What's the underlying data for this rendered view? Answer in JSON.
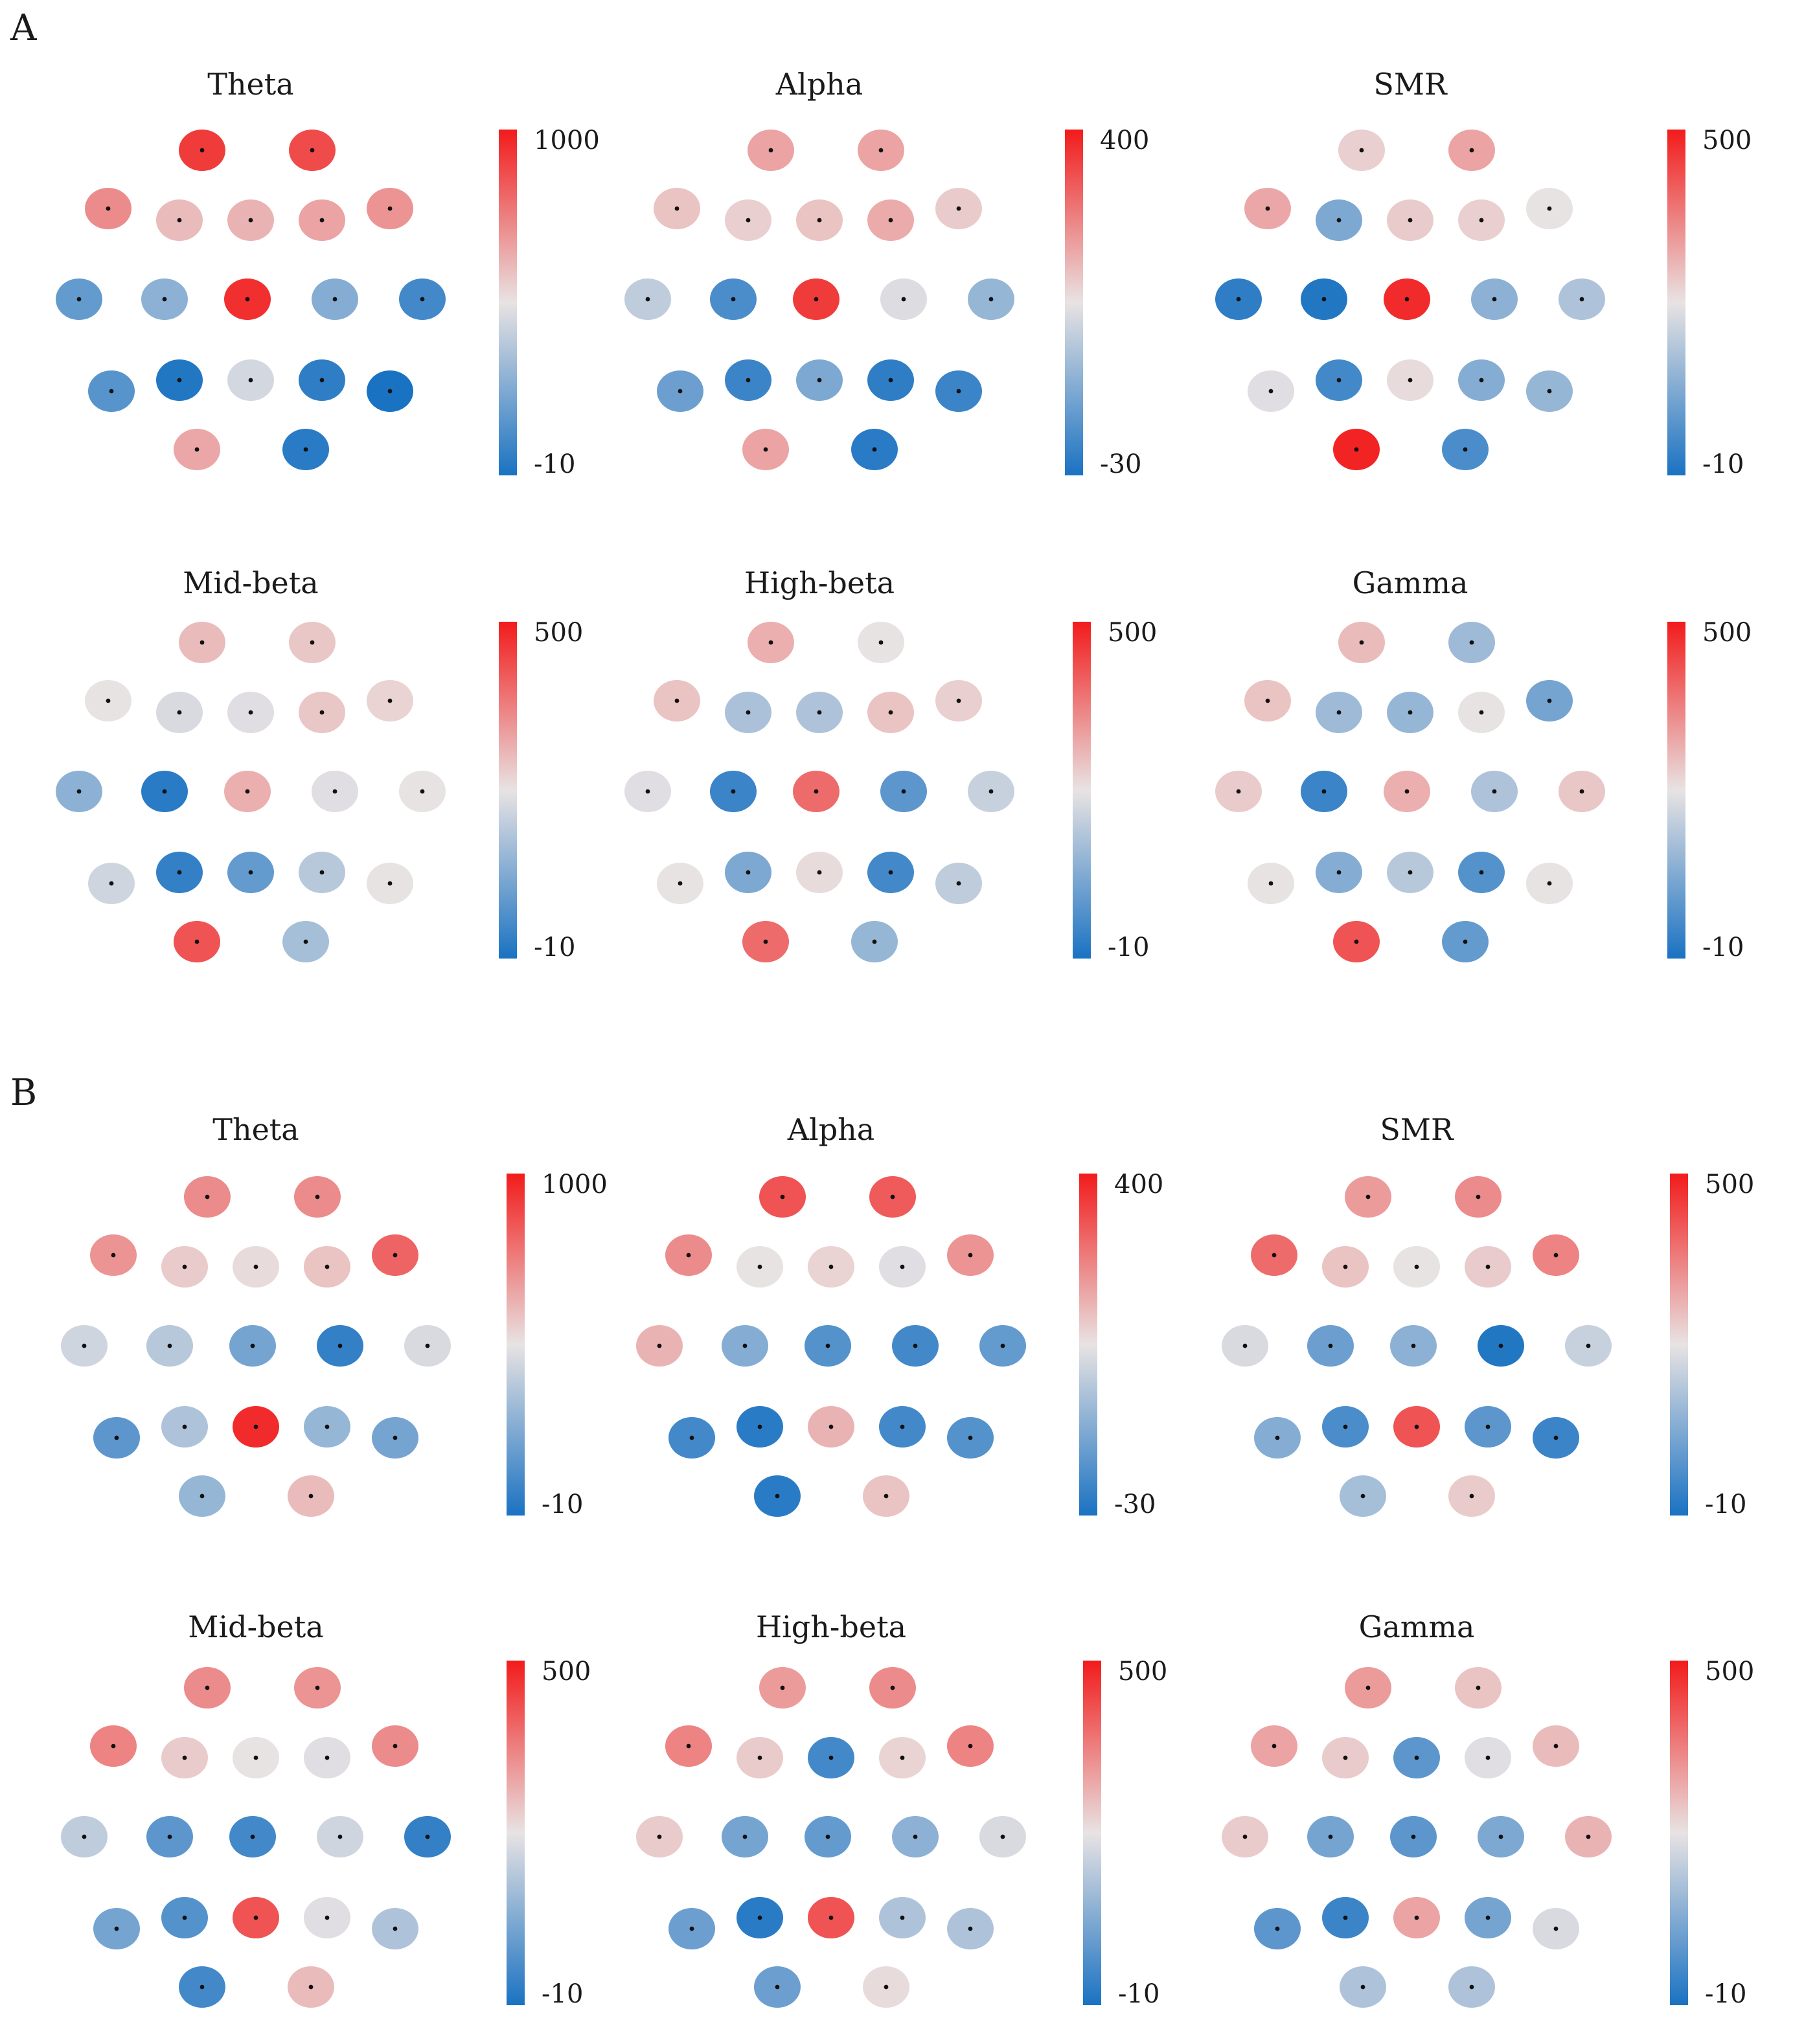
{
  "colors": {
    "high": "#f21b1b",
    "mid": "#e8e3e3",
    "low": "#1a72c2",
    "dot": "#111111"
  },
  "panels": [
    {
      "label": "A",
      "chart_data": [
        {
          "type": "heatmap",
          "title": "Theta",
          "colorbar": {
            "max_label": "1000",
            "min_label": "-10"
          },
          "values": [
            0.92,
            0.88,
            0.72,
            0.6,
            0.62,
            0.66,
            0.7,
            0.18,
            0.28,
            0.95,
            0.26,
            0.1,
            0.15,
            0.02,
            0.45,
            0.05,
            0.0,
            0.65,
            0.04
          ]
        },
        {
          "type": "heatmap",
          "title": "Alpha",
          "colorbar": {
            "max_label": "400",
            "min_label": "-30"
          },
          "values": [
            0.66,
            0.66,
            0.58,
            0.55,
            0.58,
            0.64,
            0.56,
            0.4,
            0.12,
            0.92,
            0.47,
            0.3,
            0.2,
            0.08,
            0.24,
            0.05,
            0.08,
            0.66,
            0.04
          ]
        },
        {
          "type": "heatmap",
          "title": "SMR",
          "colorbar": {
            "max_label": "500",
            "min_label": "-10"
          },
          "values": [
            0.55,
            0.66,
            0.65,
            0.24,
            0.56,
            0.55,
            0.5,
            0.05,
            0.02,
            0.96,
            0.28,
            0.36,
            0.48,
            0.1,
            0.52,
            0.26,
            0.3,
            0.98,
            0.12
          ]
        },
        {
          "type": "heatmap",
          "title": "Mid-beta",
          "colorbar": {
            "max_label": "500",
            "min_label": "-10"
          },
          "values": [
            0.6,
            0.57,
            0.5,
            0.46,
            0.48,
            0.57,
            0.54,
            0.28,
            0.04,
            0.63,
            0.48,
            0.5,
            0.44,
            0.06,
            0.18,
            0.38,
            0.5,
            0.86,
            0.34
          ]
        },
        {
          "type": "heatmap",
          "title": "High-beta",
          "colorbar": {
            "max_label": "500",
            "min_label": "-10"
          },
          "values": [
            0.63,
            0.5,
            0.58,
            0.35,
            0.36,
            0.58,
            0.55,
            0.48,
            0.08,
            0.8,
            0.16,
            0.42,
            0.5,
            0.24,
            0.52,
            0.1,
            0.4,
            0.8,
            0.3
          ]
        },
        {
          "type": "heatmap",
          "title": "Gamma",
          "colorbar": {
            "max_label": "500",
            "min_label": "-10"
          },
          "values": [
            0.6,
            0.32,
            0.58,
            0.32,
            0.3,
            0.5,
            0.22,
            0.56,
            0.08,
            0.63,
            0.36,
            0.57,
            0.5,
            0.26,
            0.38,
            0.14,
            0.5,
            0.86,
            0.18
          ]
        }
      ]
    },
    {
      "label": "B",
      "chart_data": [
        {
          "type": "heatmap",
          "title": "Theta",
          "colorbar": {
            "max_label": "1000",
            "min_label": "-10"
          },
          "values": [
            0.72,
            0.72,
            0.7,
            0.56,
            0.52,
            0.58,
            0.82,
            0.44,
            0.38,
            0.22,
            0.06,
            0.46,
            0.16,
            0.36,
            0.96,
            0.3,
            0.22,
            0.3,
            0.6
          ]
        },
        {
          "type": "heatmap",
          "title": "Alpha",
          "colorbar": {
            "max_label": "400",
            "min_label": "-30"
          },
          "values": [
            0.86,
            0.84,
            0.72,
            0.5,
            0.54,
            0.48,
            0.7,
            0.62,
            0.26,
            0.14,
            0.1,
            0.18,
            0.1,
            0.04,
            0.62,
            0.1,
            0.14,
            0.04,
            0.58
          ]
        },
        {
          "type": "heatmap",
          "title": "SMR",
          "colorbar": {
            "max_label": "500",
            "min_label": "-10"
          },
          "values": [
            0.68,
            0.72,
            0.8,
            0.58,
            0.5,
            0.56,
            0.74,
            0.46,
            0.2,
            0.28,
            0.02,
            0.42,
            0.26,
            0.12,
            0.86,
            0.16,
            0.08,
            0.34,
            0.56
          ]
        },
        {
          "type": "heatmap",
          "title": "Mid-beta",
          "colorbar": {
            "max_label": "500",
            "min_label": "-10"
          },
          "values": [
            0.72,
            0.7,
            0.74,
            0.56,
            0.5,
            0.48,
            0.72,
            0.4,
            0.16,
            0.1,
            0.44,
            0.06,
            0.22,
            0.14,
            0.86,
            0.48,
            0.36,
            0.1,
            0.6
          ]
        },
        {
          "type": "heatmap",
          "title": "High-beta",
          "colorbar": {
            "max_label": "500",
            "min_label": "-10"
          },
          "values": [
            0.68,
            0.72,
            0.74,
            0.56,
            0.1,
            0.54,
            0.74,
            0.56,
            0.22,
            0.18,
            0.28,
            0.46,
            0.2,
            0.04,
            0.86,
            0.36,
            0.36,
            0.2,
            0.52
          ]
        },
        {
          "type": "heatmap",
          "title": "Gamma",
          "colorbar": {
            "max_label": "500",
            "min_label": "-10"
          },
          "values": [
            0.68,
            0.58,
            0.66,
            0.56,
            0.16,
            0.48,
            0.6,
            0.56,
            0.22,
            0.16,
            0.24,
            0.62,
            0.16,
            0.08,
            0.66,
            0.22,
            0.46,
            0.36,
            0.36
          ]
        }
      ]
    }
  ]
}
